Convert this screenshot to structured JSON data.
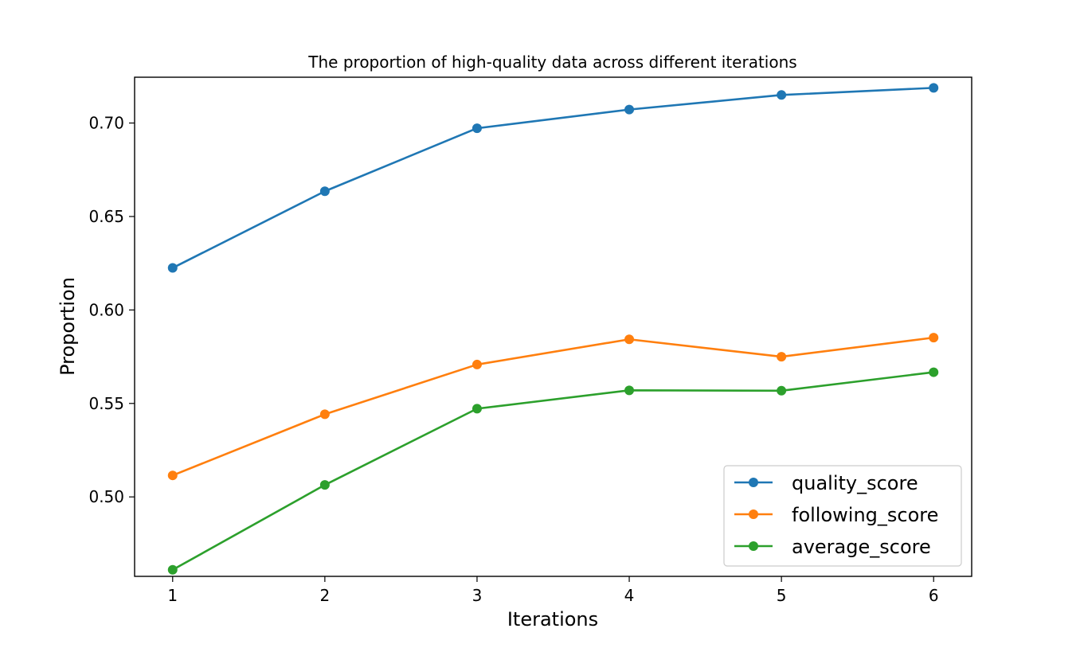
{
  "chart_data": {
    "type": "line",
    "title": "The proportion of high-quality data across different iterations",
    "xlabel": "Iterations",
    "ylabel": "Proportion",
    "x": [
      1,
      2,
      3,
      4,
      5,
      6
    ],
    "xlim": [
      0.75,
      6.25
    ],
    "ylim": [
      0.4575,
      0.7245
    ],
    "xticks": [
      1,
      2,
      3,
      4,
      5,
      6
    ],
    "yticks": [
      0.5,
      0.55,
      0.6,
      0.65,
      0.7
    ],
    "ytick_labels": [
      "0.50",
      "0.55",
      "0.60",
      "0.65",
      "0.70"
    ],
    "grid": false,
    "legend_position": "bottom-right",
    "series": [
      {
        "name": "quality_score",
        "color": "#1f77b4",
        "values": [
          0.6225,
          0.6635,
          0.6972,
          0.7072,
          0.715,
          0.7188
        ]
      },
      {
        "name": "following_score",
        "color": "#ff7f0e",
        "values": [
          0.5115,
          0.5442,
          0.5708,
          0.5843,
          0.575,
          0.5852
        ]
      },
      {
        "name": "average_score",
        "color": "#2ca02c",
        "values": [
          0.461,
          0.5064,
          0.5472,
          0.557,
          0.5568,
          0.5667
        ]
      }
    ]
  }
}
